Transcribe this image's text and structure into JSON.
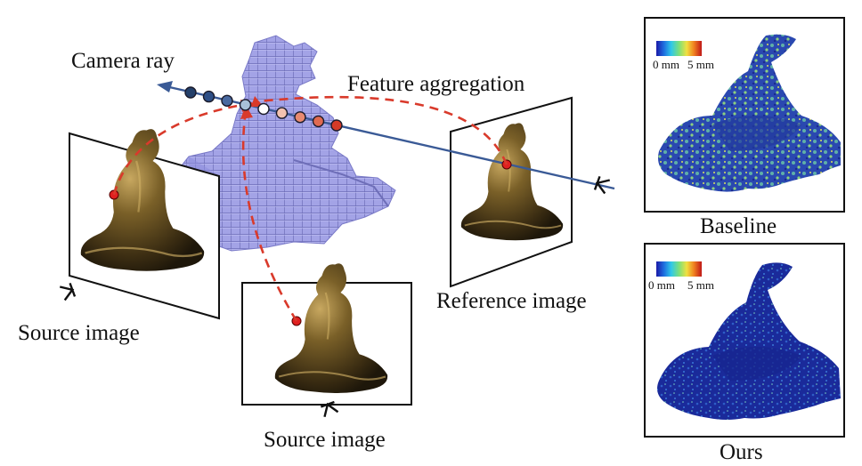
{
  "labels": {
    "camera_ray": "Camera ray",
    "feature_aggregation": "Feature aggregation",
    "reference_image": "Reference image",
    "source_image_left": "Source image",
    "source_image_bottom": "Source image",
    "baseline": "Baseline",
    "ours": "Ours"
  },
  "colorbar": {
    "min_label": "0 mm",
    "max_label": "5 mm",
    "colors": [
      "#1a1aa8",
      "#1e6fe0",
      "#30c8e8",
      "#7be07b",
      "#f0e040",
      "#f08020",
      "#c01818"
    ]
  },
  "ray_sample_colors": [
    "#24406a",
    "#2e4f86",
    "#4a6aa0",
    "#a8c0d8",
    "#ffffff",
    "#f2c2b0",
    "#e88a70",
    "#e06a50",
    "#d43a28"
  ],
  "colors": {
    "ray_line": "#3a5a96",
    "dashed_arrow": "#d93a2b",
    "voxel": "#9a9ae0",
    "statue": "#6a5628",
    "error_low": "#1a2fa0",
    "error_mid": "#6fb0a0"
  }
}
